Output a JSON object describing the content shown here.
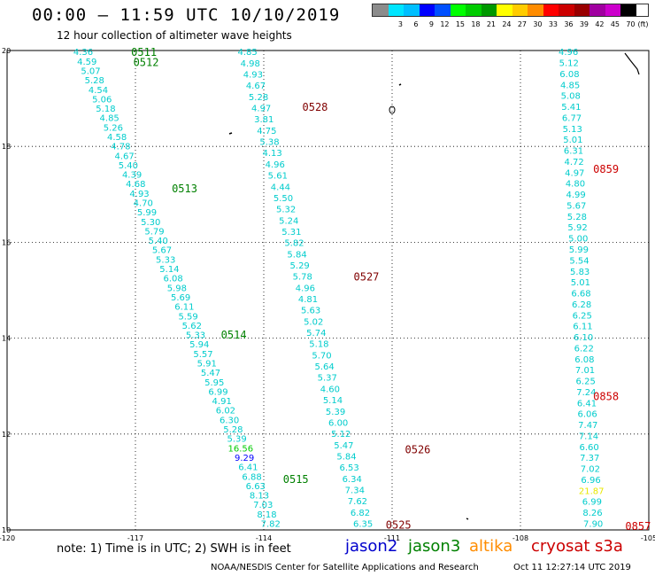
{
  "header": {
    "title": "00:00 – 11:59 UTC 10/10/2019",
    "subtitle": "12 hour collection of altimeter wave heights"
  },
  "colorbar": {
    "unit_label": "(ft)",
    "entries": [
      {
        "label": "",
        "color": "#8c8c8c"
      },
      {
        "label": "3",
        "color": "#00e5ff"
      },
      {
        "label": "6",
        "color": "#00bfff"
      },
      {
        "label": "9",
        "color": "#0000ff"
      },
      {
        "label": "12",
        "color": "#0050ff"
      },
      {
        "label": "15",
        "color": "#00ff00"
      },
      {
        "label": "18",
        "color": "#00cc00"
      },
      {
        "label": "21",
        "color": "#009900"
      },
      {
        "label": "24",
        "color": "#ffff00"
      },
      {
        "label": "27",
        "color": "#ffcc00"
      },
      {
        "label": "30",
        "color": "#ff8c00"
      },
      {
        "label": "33",
        "color": "#ff0000"
      },
      {
        "label": "36",
        "color": "#cc0000"
      },
      {
        "label": "39",
        "color": "#990000"
      },
      {
        "label": "42",
        "color": "#a000a0"
      },
      {
        "label": "45",
        "color": "#cc00cc"
      },
      {
        "label": "70",
        "color": "#000000"
      }
    ]
  },
  "map": {
    "lon_min": -120,
    "lon_max": -105,
    "lat_min": 10,
    "lat_max": 20,
    "lon_ticks": [
      "-120",
      "-117",
      "-114",
      "-111",
      "-108",
      "-105"
    ],
    "lat_ticks": [
      "10",
      "12",
      "14",
      "16",
      "18",
      "20"
    ],
    "gridlines": true,
    "colors": {
      "jason2": "#0000cc",
      "jason3": "#008000",
      "altika": "#ff8c00",
      "cryosat": "#cc0000",
      "s3a": "#800000",
      "swh": "#00cccc"
    },
    "tracks": [
      {
        "values": [
          "4.36",
          "4.59",
          "5.07",
          "5.28",
          "4.54",
          "5.06",
          "5.18",
          "4.85",
          "5.26",
          "4.58",
          "4.78",
          "4.67",
          "5.40",
          "4.39",
          "4.68",
          "4.93",
          "4.70",
          "5.99",
          "5.30",
          "5.79",
          "5.40",
          "5.67",
          "5.33",
          "5.14",
          "6.08",
          "5.98",
          "5.69",
          "6.11",
          "5.59",
          "5.62",
          "5.33",
          "5.94",
          "5.57",
          "5.91",
          "5.47",
          "5.95",
          "6.99",
          "4.91",
          "6.02",
          "6.30",
          "5.28",
          "5.39",
          "16.56",
          "9.29",
          "6.41",
          "6.88",
          "6.63",
          "8.13",
          "7.03",
          "8.18",
          "7.82"
        ],
        "colors": {
          "42": "#00cc00",
          "43": "#0000ff"
        },
        "start": [
          -118.22,
          19.96
        ],
        "end": [
          -113.84,
          10.12
        ]
      },
      {
        "values": [
          "4.85",
          "4.98",
          "4.93",
          "4.67",
          "5.28",
          "4.97",
          "3.81",
          "4.75",
          "5.38",
          "4.13",
          "4.96",
          "5.61",
          "4.44",
          "5.50",
          "5.32",
          "5.24",
          "5.31",
          "5.82",
          "5.84",
          "5.29",
          "5.78",
          "4.96",
          "4.81",
          "5.63",
          "5.02",
          "5.74",
          "5.18",
          "5.70",
          "5.64",
          "5.37",
          "4.60",
          "5.14",
          "5.39",
          "6.00",
          "5.12",
          "5.47",
          "5.84",
          "6.53",
          "6.34",
          "7.34",
          "7.62",
          "6.82",
          "6.35"
        ],
        "start": [
          -114.38,
          19.96
        ],
        "end": [
          -111.68,
          10.12
        ]
      },
      {
        "values": [
          "4.96",
          "5.12",
          "6.08",
          "4.85",
          "5.08",
          "5.41",
          "6.77",
          "5.13",
          "5.01",
          "6.31",
          "4.72",
          "4.97",
          "4.80",
          "4.99",
          "5.67",
          "5.28",
          "5.92",
          "5.00",
          "5.99",
          "5.54",
          "5.83",
          "5.01",
          "6.68",
          "6.28",
          "6.25",
          "6.11",
          "6.10",
          "6.22",
          "6.08",
          "7.01",
          "6.25",
          "7.24",
          "6.41",
          "6.06",
          "7.47",
          "7.14",
          "6.60",
          "7.37",
          "7.02",
          "6.96",
          "21.87",
          "6.99",
          "8.26",
          "7.90"
        ],
        "colors": {
          "40": "#e8e800"
        },
        "start": [
          -106.88,
          19.96
        ],
        "end": [
          -106.3,
          10.12
        ]
      }
    ],
    "pass_labels": [
      {
        "text": "0511",
        "sat": "jason3",
        "lon": -117.1,
        "lat": 19.96
      },
      {
        "text": "0512",
        "sat": "jason3",
        "lon": -117.05,
        "lat": 19.75
      },
      {
        "text": "0513",
        "sat": "jason3",
        "lon": -116.15,
        "lat": 17.12
      },
      {
        "text": "0514",
        "sat": "jason3",
        "lon": -115.0,
        "lat": 14.07
      },
      {
        "text": "0515",
        "sat": "jason3",
        "lon": -113.55,
        "lat": 11.05
      },
      {
        "text": "0528",
        "sat": "s3a",
        "lon": -113.1,
        "lat": 18.82
      },
      {
        "text": "0527",
        "sat": "s3a",
        "lon": -111.9,
        "lat": 15.28
      },
      {
        "text": "0526",
        "sat": "s3a",
        "lon": -110.7,
        "lat": 11.67
      },
      {
        "text": "0525",
        "sat": "s3a",
        "lon": -111.15,
        "lat": 10.1
      },
      {
        "text": "0859",
        "sat": "cryosat",
        "lon": -106.3,
        "lat": 17.52
      },
      {
        "text": "0858",
        "sat": "cryosat",
        "lon": -106.3,
        "lat": 12.78
      },
      {
        "text": "0857",
        "sat": "cryosat",
        "lon": -105.55,
        "lat": 10.07
      }
    ]
  },
  "footer": {
    "note": "note: 1) Time is in UTC; 2) SWH is in feet",
    "legend": [
      "jason2",
      "jason3",
      "altika",
      "cryosat",
      "s3a"
    ],
    "credit": "NOAA/NESDIS Center for Satellite Applications and Research",
    "timestamp": "Oct 11 12:27:14 UTC 2019"
  }
}
